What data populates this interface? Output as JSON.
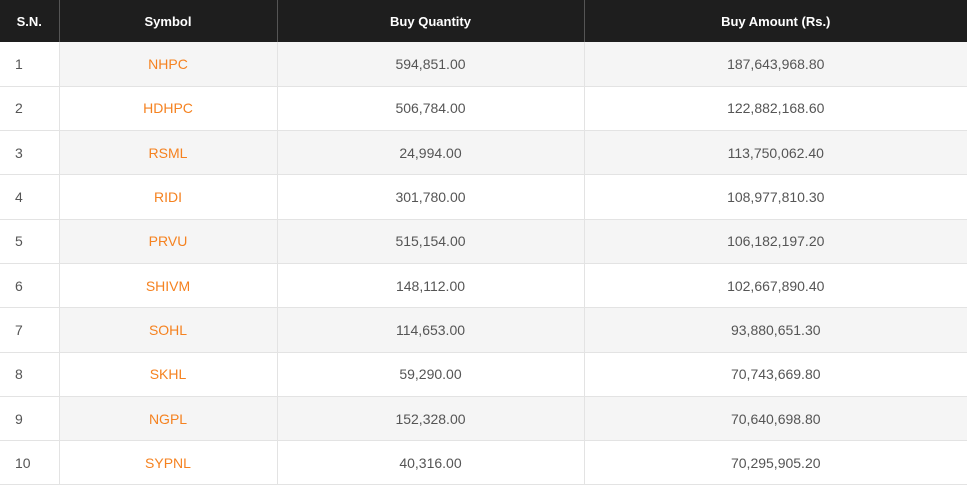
{
  "table": {
    "header": [
      "S.N.",
      "Symbol",
      "Buy Quantity",
      "Buy Amount (Rs.)"
    ],
    "rows": [
      [
        "1",
        "NHPC",
        "594,851.00",
        "187,643,968.80"
      ],
      [
        "2",
        "HDHPC",
        "506,784.00",
        "122,882,168.60"
      ],
      [
        "3",
        "RSML",
        "24,994.00",
        "113,750,062.40"
      ],
      [
        "4",
        "RIDI",
        "301,780.00",
        "108,977,810.30"
      ],
      [
        "5",
        "PRVU",
        "515,154.00",
        "106,182,197.20"
      ],
      [
        "6",
        "SHIVM",
        "148,112.00",
        "102,667,890.40"
      ],
      [
        "7",
        "SOHL",
        "114,653.00",
        "93,880,651.30"
      ],
      [
        "8",
        "SKHL",
        "59,290.00",
        "70,743,669.80"
      ],
      [
        "9",
        "NGPL",
        "152,328.00",
        "70,640,698.80"
      ],
      [
        "10",
        "SYPNL",
        "40,316.00",
        "70,295,905.20"
      ]
    ]
  }
}
